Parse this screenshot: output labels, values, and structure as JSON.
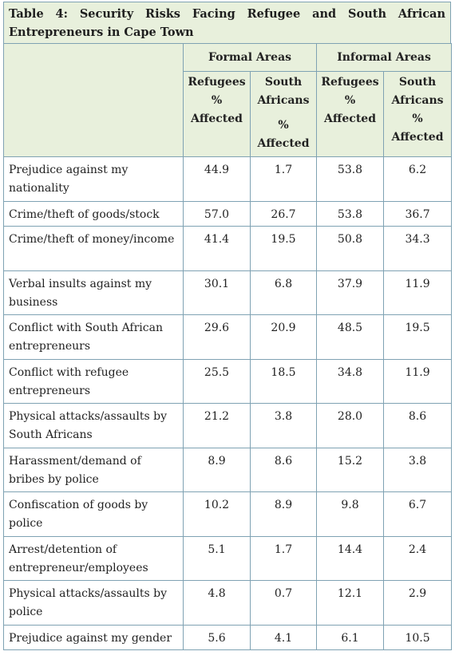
{
  "title": "Table 4: Security Risks Facing Refugee and South African Entrepreneurs in Cape Town",
  "groups": {
    "formal": "Formal Areas",
    "informal": "Informal Areas"
  },
  "subheaders": {
    "formal_ref": [
      "Refugees",
      "%",
      "Affected"
    ],
    "formal_sa": [
      "South",
      "Africans",
      "%",
      "Affected"
    ],
    "informal_ref": [
      "Refugees",
      "%",
      "Affected"
    ],
    "informal_sa": [
      "South",
      "Africans",
      "%",
      "Affected"
    ]
  },
  "rows": [
    {
      "label": "Prejudice against my nationality",
      "values": [
        "44.9",
        "1.7",
        "53.8",
        "6.2"
      ]
    },
    {
      "label": "Crime/theft of goods/stock",
      "values": [
        "57.0",
        "26.7",
        "53.8",
        "36.7"
      ]
    },
    {
      "label": "Crime/theft of money/income",
      "values": [
        "41.4",
        "19.5",
        "50.8",
        "34.3"
      ]
    },
    {
      "label": "Verbal insults against my business",
      "values": [
        "30.1",
        "6.8",
        "37.9",
        "11.9"
      ]
    },
    {
      "label": "Conflict with South African entrepreneurs",
      "values": [
        "29.6",
        "20.9",
        "48.5",
        "19.5"
      ]
    },
    {
      "label": "Conflict with refugee entrepreneurs",
      "values": [
        "25.5",
        "18.5",
        "34.8",
        "11.9"
      ]
    },
    {
      "label": "Physical attacks/assaults by South Africans",
      "values": [
        "21.2",
        "3.8",
        "28.0",
        "8.6"
      ]
    },
    {
      "label": "Harassment/demand of bribes by police",
      "values": [
        "8.9",
        "8.6",
        "15.2",
        "3.8"
      ]
    },
    {
      "label": "Confiscation of goods by police",
      "values": [
        "10.2",
        "8.9",
        "9.8",
        "6.7"
      ]
    },
    {
      "label": "Arrest/detention of entrepreneur/employees",
      "values": [
        "5.1",
        "1.7",
        "14.4",
        "2.4"
      ]
    },
    {
      "label": "Physical attacks/assaults by police",
      "values": [
        "4.8",
        "0.7",
        "12.1",
        "2.9"
      ]
    },
    {
      "label": "Prejudice against my gender",
      "values": [
        "5.6",
        "4.1",
        "6.1",
        "10.5"
      ]
    }
  ]
}
